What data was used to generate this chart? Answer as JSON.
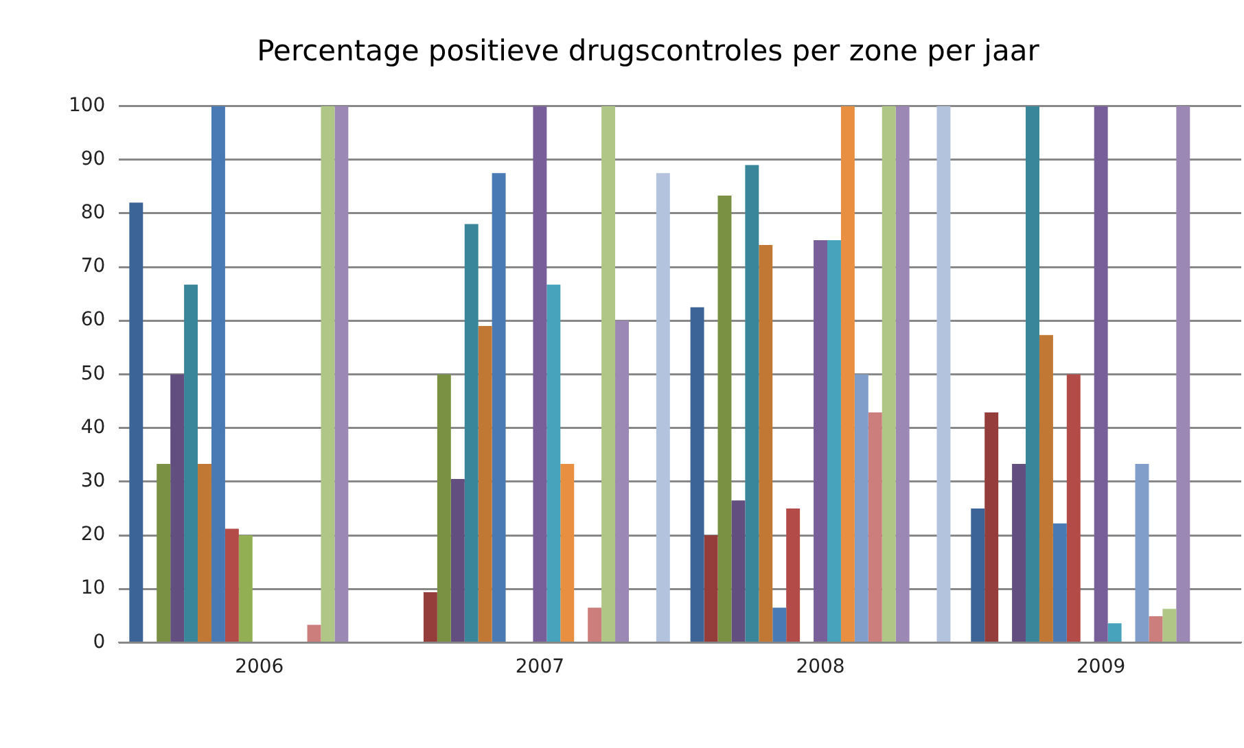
{
  "chart_data": {
    "type": "bar",
    "title": "Percentage positieve drugscontroles per zone per jaar",
    "categories": [
      "2006",
      "2007",
      "2008",
      "2009"
    ],
    "series": [
      {
        "color": "#3c6496",
        "values": [
          82,
          0,
          62.5,
          25
        ]
      },
      {
        "color": "#953d3b",
        "values": [
          0,
          9.4,
          20,
          42.9
        ]
      },
      {
        "color": "#7a9143",
        "values": [
          33.3,
          50,
          83.3,
          0
        ]
      },
      {
        "color": "#624e7f",
        "values": [
          50,
          30.5,
          26.5,
          33.3
        ]
      },
      {
        "color": "#39869b",
        "values": [
          66.7,
          78,
          89,
          100
        ]
      },
      {
        "color": "#c17835",
        "values": [
          33.3,
          59,
          74.1,
          57.3
        ]
      },
      {
        "color": "#4a7ab3",
        "values": [
          100,
          87.5,
          6.5,
          22.2
        ]
      },
      {
        "color": "#b34b49",
        "values": [
          21.2,
          0,
          25,
          50
        ]
      },
      {
        "color": "#92af53",
        "values": [
          20,
          0,
          0,
          0
        ]
      },
      {
        "color": "#785f99",
        "values": [
          0,
          100,
          75,
          100
        ]
      },
      {
        "color": "#47a3bb",
        "values": [
          0,
          66.7,
          75,
          3.6
        ]
      },
      {
        "color": "#e98f42",
        "values": [
          0,
          33.3,
          100,
          0
        ]
      },
      {
        "color": "#809ec9",
        "values": [
          0,
          0,
          50,
          33.3
        ]
      },
      {
        "color": "#cc7e7c",
        "values": [
          3.3,
          6.5,
          42.9,
          4.9
        ]
      },
      {
        "color": "#b0c686",
        "values": [
          100,
          100,
          100,
          6.3
        ]
      },
      {
        "color": "#9c88b5",
        "values": [
          100,
          60,
          100,
          100
        ]
      },
      {
        "color": "#a5d0de",
        "values": [
          0,
          0,
          0,
          0
        ]
      },
      {
        "color": "#f9c08f",
        "values": [
          0,
          0,
          0,
          0
        ]
      },
      {
        "color": "#b4c3dd",
        "values": [
          0,
          87.5,
          100,
          0
        ]
      }
    ],
    "ylim": [
      0,
      100
    ],
    "yticks": [
      0,
      10,
      20,
      30,
      40,
      50,
      60,
      70,
      80,
      90,
      100
    ],
    "grid": "y",
    "legend": false
  }
}
